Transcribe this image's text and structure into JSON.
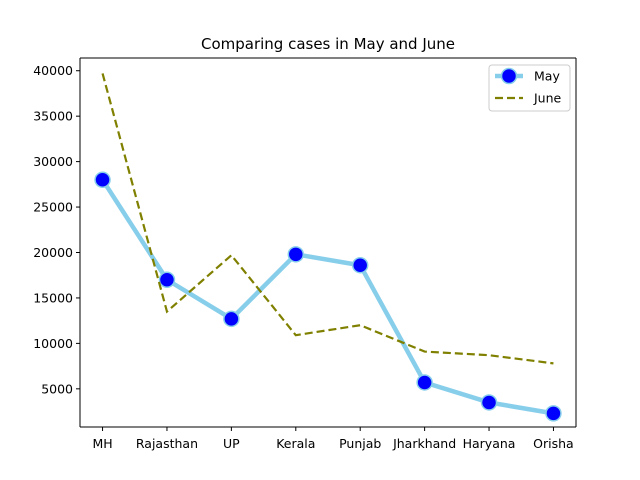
{
  "chart_data": {
    "type": "line",
    "title": "Comparing cases in May and June",
    "xlabel": "",
    "ylabel": "",
    "categories": [
      "MH",
      "Rajasthan",
      "UP",
      "Kerala",
      "Punjab",
      "Jharkhand",
      "Haryana",
      "Orisha"
    ],
    "yticks": [
      5000,
      10000,
      15000,
      20000,
      25000,
      30000,
      35000,
      40000
    ],
    "ylim": [
      800,
      41400
    ],
    "grid": false,
    "legend_position": "top-right",
    "series": [
      {
        "name": "May",
        "values": [
          28000,
          17000,
          12700,
          19800,
          18600,
          5700,
          3500,
          2300
        ],
        "line_color": "#87ceeb",
        "marker_color": "#0000ff",
        "line_style": "solid",
        "marker": "circle"
      },
      {
        "name": "June",
        "values": [
          39700,
          13500,
          19700,
          10900,
          12000,
          9100,
          8700,
          7800
        ],
        "line_color": "#808000",
        "line_style": "dashed",
        "marker": "none"
      }
    ]
  }
}
